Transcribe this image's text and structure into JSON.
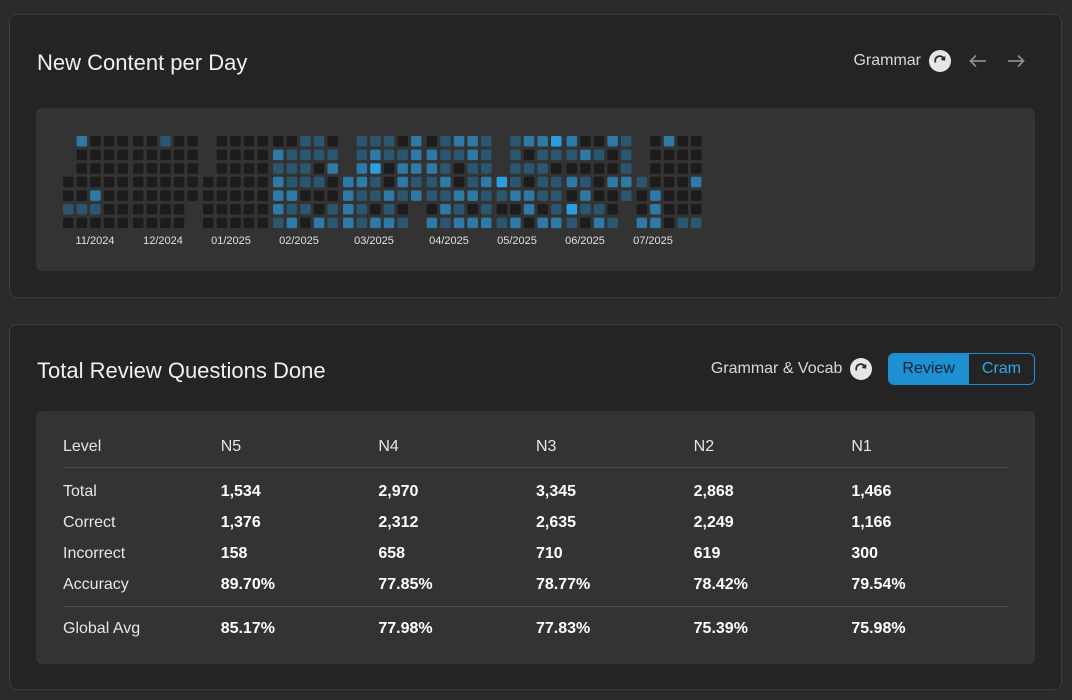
{
  "heatmap_panel": {
    "title": "New Content per Day",
    "filter_label": "Grammar",
    "month_labels": [
      "11/2024",
      "12/2024",
      "01/2025",
      "02/2025",
      "03/2025",
      "04/2025",
      "05/2025",
      "06/2025",
      "07/2025"
    ]
  },
  "review_panel": {
    "title": "Total Review Questions Done",
    "filter_label": "Grammar & Vocab",
    "toggle": {
      "review": "Review",
      "cram": "Cram",
      "active": "Review"
    },
    "table": {
      "header": [
        "Level",
        "N5",
        "N4",
        "N3",
        "N2",
        "N1"
      ],
      "rows": [
        {
          "label": "Total",
          "values": [
            "1,534",
            "2,970",
            "3,345",
            "2,868",
            "1,466"
          ]
        },
        {
          "label": "Correct",
          "values": [
            "1,376",
            "2,312",
            "2,635",
            "2,249",
            "1,166"
          ]
        },
        {
          "label": "Incorrect",
          "values": [
            "158",
            "658",
            "710",
            "619",
            "300"
          ]
        },
        {
          "label": "Accuracy",
          "values": [
            "89.70%",
            "77.85%",
            "78.77%",
            "78.42%",
            "79.54%"
          ]
        }
      ],
      "global": {
        "label": "Global Avg",
        "values": [
          "85.17%",
          "77.98%",
          "77.83%",
          "75.39%",
          "75.98%"
        ]
      }
    }
  },
  "colors": {
    "background": "#2b2b2b",
    "panel": "#242424",
    "inner": "#333333",
    "accent": "#1e8fd0",
    "cell_empty": "#1c1c1c",
    "cell_low": "#2b5670",
    "cell_mid": "#2f79a6",
    "cell_high": "#2a9ee0"
  }
}
